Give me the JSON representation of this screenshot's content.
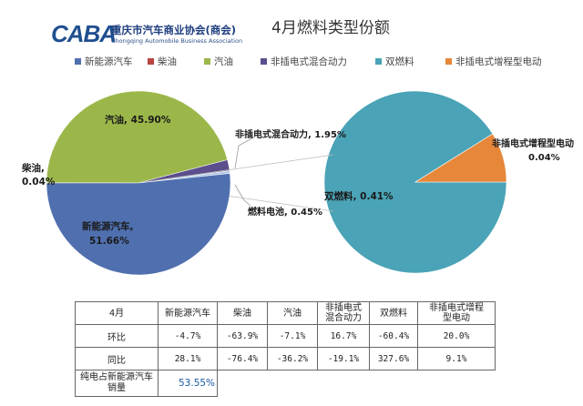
{
  "header": {
    "logo_mark": "CABA",
    "org_name_cn": "重庆市汽车商业协会(商会)",
    "org_name_en": "Chongqing Automobile Business Association",
    "title": "4月燃料类型份额"
  },
  "legend": [
    {
      "label": "新能源汽车",
      "color": "#4f6fae"
    },
    {
      "label": "柴油",
      "color": "#b84440"
    },
    {
      "label": "汽油",
      "color": "#9bb74a"
    },
    {
      "label": "非插电式混合动力",
      "color": "#5c4e8c"
    },
    {
      "label": "双燃料",
      "color": "#4aa3b6"
    },
    {
      "label": "非插电式增程型电动",
      "color": "#e6873a"
    }
  ],
  "chart_data": [
    {
      "type": "pie",
      "title": "",
      "slices": [
        {
          "name": "新能源汽车",
          "value": 51.66,
          "label": "新能源汽车,\n51.66%",
          "color": "#4f6fae"
        },
        {
          "name": "柴油",
          "value": 0.04,
          "label": "柴油,\n0.04%",
          "color": "#b84440"
        },
        {
          "name": "汽油",
          "value": 45.9,
          "label": "汽油, 45.90%",
          "color": "#9bb74a"
        },
        {
          "name": "非插电式混合动力",
          "value": 1.95,
          "label": "非插电式混合动力, 1.95%",
          "color": "#5c4e8c"
        },
        {
          "name": "燃料电池",
          "value": 0.45,
          "label": "燃料电池, 0.45%",
          "color": "#a9c4e6"
        }
      ]
    },
    {
      "type": "pie",
      "title": "",
      "slices": [
        {
          "name": "双燃料",
          "value": 0.41,
          "label": "双燃料, 0.41%",
          "color": "#4aa3b6"
        },
        {
          "name": "非插电式增程型电动",
          "value": 0.04,
          "label": "非插电式增程型电动\n0.04%",
          "color": "#e6873a"
        }
      ]
    }
  ],
  "table": {
    "headers": [
      "4月",
      "新能源汽车",
      "柴油",
      "汽油",
      "非插电式\n混合动力",
      "双燃料",
      "非插电式增程\n型电动"
    ],
    "rows": [
      {
        "label": "环比",
        "values": [
          "-4.7%",
          "-63.9%",
          "-7.1%",
          "16.7%",
          "-60.4%",
          "20.0%"
        ]
      },
      {
        "label": "同比",
        "values": [
          "28.1%",
          "-76.4%",
          "-36.2%",
          "-19.1%",
          "327.6%",
          "9.1%"
        ]
      }
    ],
    "ev_share_label": "纯电占新能源汽车\n销量",
    "ev_share_value": "53.55%"
  }
}
